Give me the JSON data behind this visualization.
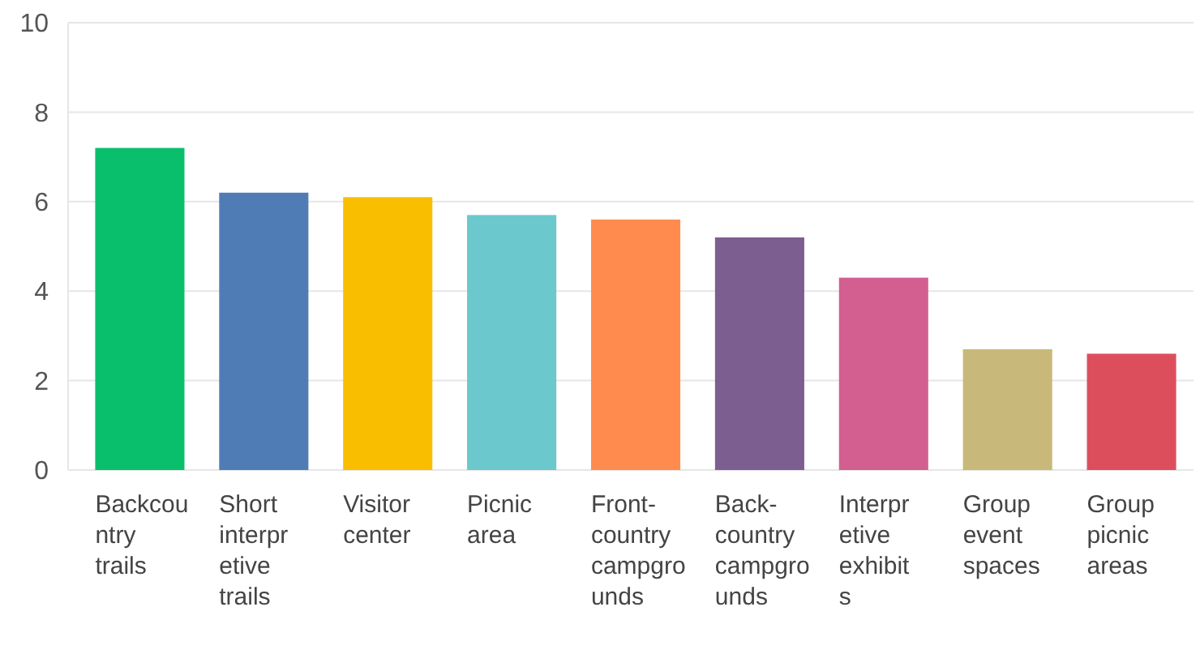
{
  "chart_data": {
    "type": "bar",
    "categories": [
      "Backcountry trails",
      "Short interpretive trails",
      "Visitor center",
      "Picnic area",
      "Front-country campgrounds",
      "Back-country campgrounds",
      "Interpretive exhibits",
      "Group event spaces",
      "Group picnic areas"
    ],
    "values": [
      7.2,
      6.2,
      6.1,
      5.7,
      5.6,
      5.2,
      4.3,
      2.7,
      2.6
    ],
    "colors": [
      "#0abf6b",
      "#507cb6",
      "#f9be00",
      "#6bc8cd",
      "#ff8b4f",
      "#7d5e90",
      "#d25f90",
      "#c8b97a",
      "#dd4e5d"
    ],
    "ylim": [
      0,
      10
    ],
    "yticks": [
      0,
      2,
      4,
      6,
      8,
      10
    ],
    "grid": "y"
  }
}
